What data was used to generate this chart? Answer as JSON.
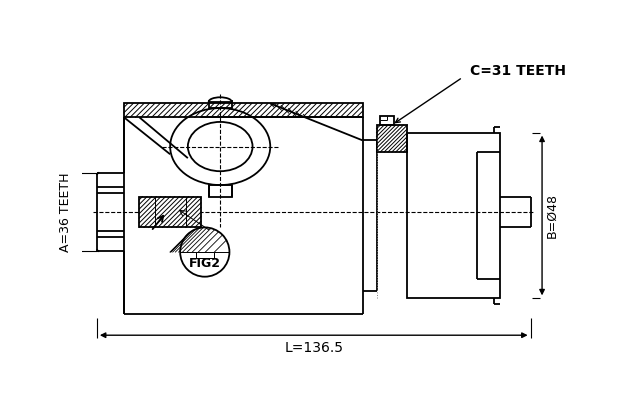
{
  "background_color": "#ffffff",
  "line_color": "#000000",
  "labels": {
    "A": "A=36 TEETH",
    "B": "B=Ø48",
    "C": "C=31 TEETH",
    "L": "L=136.5",
    "FIG2": "FIG2"
  },
  "font_size_labels": 9,
  "font_size_fig2": 9
}
